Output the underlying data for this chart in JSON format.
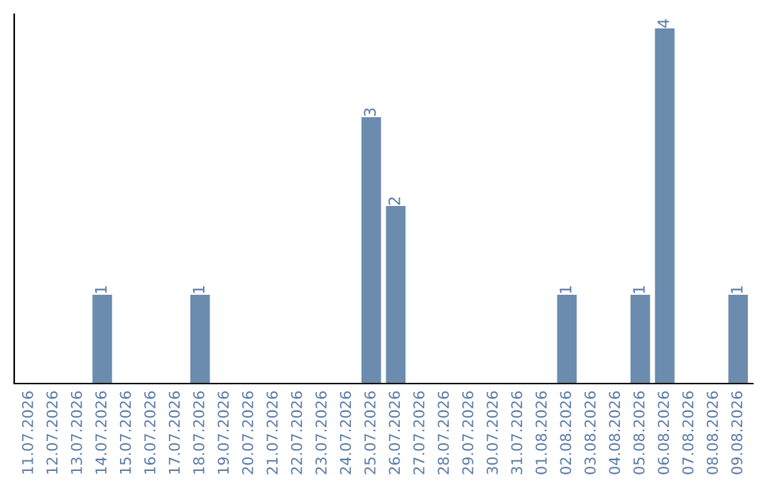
{
  "chart_data": {
    "type": "bar",
    "categories": [
      "11.07.2026",
      "12.07.2026",
      "13.07.2026",
      "14.07.2026",
      "15.07.2026",
      "16.07.2026",
      "17.07.2026",
      "18.07.2026",
      "19.07.2026",
      "20.07.2026",
      "21.07.2026",
      "22.07.2026",
      "23.07.2026",
      "24.07.2026",
      "25.07.2026",
      "26.07.2026",
      "27.07.2026",
      "28.07.2026",
      "29.07.2026",
      "30.07.2026",
      "31.07.2026",
      "01.08.2026",
      "02.08.2026",
      "03.08.2026",
      "04.08.2026",
      "05.08.2026",
      "06.08.2026",
      "07.08.2026",
      "08.08.2026",
      "09.08.2026"
    ],
    "values": [
      0,
      0,
      0,
      1,
      0,
      0,
      0,
      1,
      0,
      0,
      0,
      0,
      0,
      0,
      3,
      2,
      0,
      0,
      0,
      0,
      0,
      0,
      1,
      0,
      0,
      1,
      4,
      0,
      0,
      1
    ],
    "value_labels": [
      null,
      null,
      null,
      "1",
      null,
      null,
      null,
      "1",
      null,
      null,
      null,
      null,
      null,
      null,
      "3",
      "2",
      null,
      null,
      null,
      null,
      null,
      null,
      "1",
      null,
      null,
      "1",
      "4",
      null,
      null,
      "1"
    ],
    "color": "#6b8cae",
    "tick_labels": "x",
    "grid": false,
    "legend": false
  }
}
